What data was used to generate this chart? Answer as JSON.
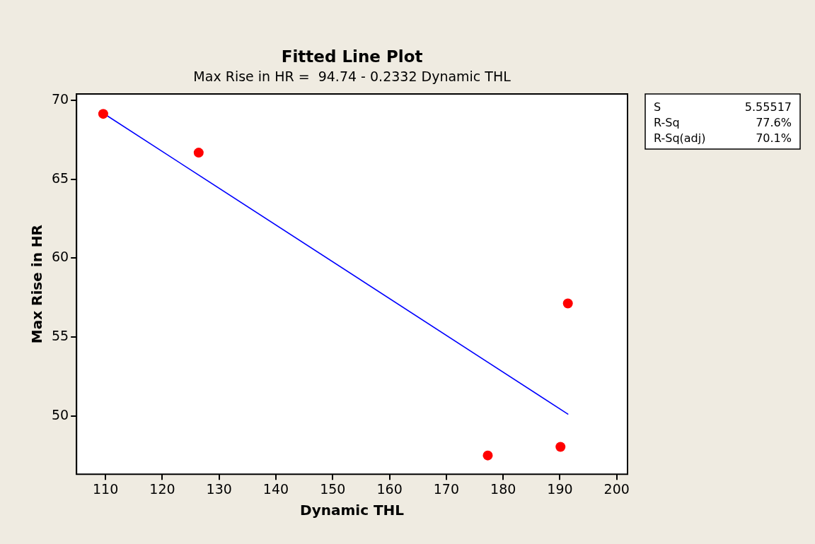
{
  "chart_data": {
    "type": "scatter",
    "title": "Fitted Line Plot",
    "subtitle": "Max Rise in HR =  94.74 - 0.2332 Dynamic THL",
    "xlabel": "Dynamic THL",
    "ylabel": "Max Rise in HR",
    "annotations": [
      "S",
      "5.55517",
      "R-Sq",
      "77.6%",
      "R-Sq(adj)",
      "70.1%"
    ],
    "xlim": [
      104.9,
      201.9
    ],
    "xticks": [
      110,
      120,
      130,
      140,
      150,
      160,
      170,
      180,
      190,
      200
    ],
    "ylim": [
      46.3,
      70.4
    ],
    "yticks": [
      50,
      55,
      60,
      65,
      70
    ],
    "marker": "circle",
    "legend": false,
    "grid": false,
    "series": [
      {
        "type": "scatter",
        "color": "#ff0000",
        "x": [
          109.6,
          126.4,
          177.3,
          190.1,
          191.4
        ],
        "values": [
          69.14,
          66.68,
          47.49,
          48.03,
          57.12
        ]
      },
      {
        "type": "line",
        "color": "#0000ff",
        "marker": "none",
        "x": [
          109.6,
          191.4
        ],
        "values": [
          69.18,
          50.11
        ]
      }
    ]
  }
}
